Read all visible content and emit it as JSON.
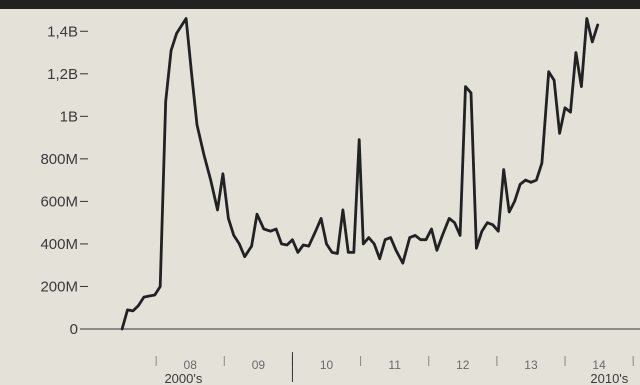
{
  "chart_data": {
    "type": "line",
    "y_ticks": [
      "0",
      "200M",
      "400M",
      "600M",
      "800M",
      "1B",
      "1,2B",
      "1,4B"
    ],
    "y_tick_values": [
      0,
      200000000,
      400000000,
      600000000,
      800000000,
      1000000000,
      1200000000,
      1400000000
    ],
    "ylim": [
      0,
      1500000000
    ],
    "x_tick_labels": [
      "08",
      "09",
      "10",
      "11",
      "12",
      "13",
      "14"
    ],
    "decade_labels": [
      "2000's",
      "2010's"
    ],
    "x_range": [
      2007.0,
      2015.1
    ],
    "grid": false,
    "series": [
      {
        "values": [
          [
            2007.5,
            0
          ],
          [
            2007.58,
            90000000
          ],
          [
            2007.66,
            85000000
          ],
          [
            2007.74,
            110000000
          ],
          [
            2007.82,
            150000000
          ],
          [
            2007.9,
            155000000
          ],
          [
            2007.98,
            160000000
          ],
          [
            2008.06,
            200000000
          ],
          [
            2008.14,
            1070000000
          ],
          [
            2008.22,
            1310000000
          ],
          [
            2008.3,
            1390000000
          ],
          [
            2008.38,
            1430000000
          ],
          [
            2008.44,
            1460000000
          ],
          [
            2008.52,
            1200000000
          ],
          [
            2008.6,
            960000000
          ],
          [
            2008.7,
            820000000
          ],
          [
            2008.8,
            700000000
          ],
          [
            2008.9,
            560000000
          ],
          [
            2008.98,
            730000000
          ],
          [
            2009.06,
            520000000
          ],
          [
            2009.14,
            440000000
          ],
          [
            2009.22,
            400000000
          ],
          [
            2009.3,
            340000000
          ],
          [
            2009.4,
            390000000
          ],
          [
            2009.48,
            540000000
          ],
          [
            2009.58,
            470000000
          ],
          [
            2009.68,
            460000000
          ],
          [
            2009.76,
            470000000
          ],
          [
            2009.84,
            400000000
          ],
          [
            2009.92,
            395000000
          ],
          [
            2010.0,
            420000000
          ],
          [
            2010.08,
            360000000
          ],
          [
            2010.16,
            395000000
          ],
          [
            2010.24,
            390000000
          ],
          [
            2010.34,
            460000000
          ],
          [
            2010.42,
            520000000
          ],
          [
            2010.5,
            400000000
          ],
          [
            2010.58,
            360000000
          ],
          [
            2010.66,
            355000000
          ],
          [
            2010.74,
            560000000
          ],
          [
            2010.82,
            360000000
          ],
          [
            2010.9,
            360000000
          ],
          [
            2010.98,
            890000000
          ],
          [
            2011.04,
            400000000
          ],
          [
            2011.12,
            430000000
          ],
          [
            2011.2,
            400000000
          ],
          [
            2011.28,
            330000000
          ],
          [
            2011.36,
            420000000
          ],
          [
            2011.44,
            430000000
          ],
          [
            2011.52,
            370000000
          ],
          [
            2011.62,
            310000000
          ],
          [
            2011.72,
            430000000
          ],
          [
            2011.8,
            440000000
          ],
          [
            2011.88,
            420000000
          ],
          [
            2011.96,
            420000000
          ],
          [
            2012.04,
            470000000
          ],
          [
            2012.12,
            370000000
          ],
          [
            2012.2,
            440000000
          ],
          [
            2012.3,
            520000000
          ],
          [
            2012.38,
            500000000
          ],
          [
            2012.46,
            440000000
          ],
          [
            2012.54,
            1140000000
          ],
          [
            2012.62,
            1110000000
          ],
          [
            2012.7,
            380000000
          ],
          [
            2012.78,
            460000000
          ],
          [
            2012.86,
            500000000
          ],
          [
            2012.94,
            490000000
          ],
          [
            2013.02,
            460000000
          ],
          [
            2013.1,
            750000000
          ],
          [
            2013.18,
            550000000
          ],
          [
            2013.26,
            600000000
          ],
          [
            2013.34,
            680000000
          ],
          [
            2013.42,
            700000000
          ],
          [
            2013.5,
            690000000
          ],
          [
            2013.58,
            700000000
          ],
          [
            2013.66,
            780000000
          ],
          [
            2013.76,
            1210000000
          ],
          [
            2013.84,
            1170000000
          ],
          [
            2013.92,
            920000000
          ],
          [
            2014.0,
            1040000000
          ],
          [
            2014.08,
            1020000000
          ],
          [
            2014.16,
            1300000000
          ],
          [
            2014.24,
            1140000000
          ],
          [
            2014.32,
            1460000000
          ],
          [
            2014.4,
            1350000000
          ],
          [
            2014.48,
            1430000000
          ]
        ]
      }
    ]
  }
}
